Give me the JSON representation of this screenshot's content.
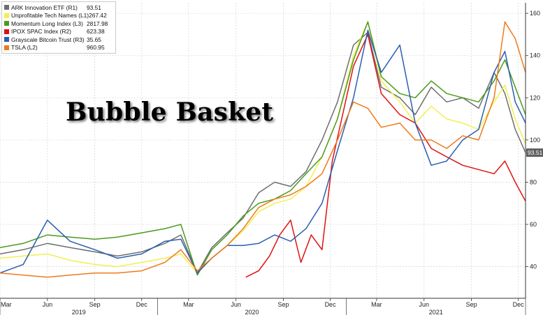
{
  "headline": "Bubble Basket",
  "chart_data": {
    "type": "line",
    "title": "Bubble Basket",
    "x_months": [
      "Mar",
      "Jun",
      "Sep",
      "Dec",
      "Mar",
      "Jun",
      "Sep",
      "Dec",
      "Mar",
      "Jun",
      "Sep",
      "Dec"
    ],
    "x_years": [
      "2019",
      "2020",
      "2021"
    ],
    "ylim": [
      25,
      165
    ],
    "y_ticks": [
      40,
      60,
      80,
      100,
      120,
      140,
      160
    ],
    "grid": true,
    "legend_placement": "top-left",
    "last_value_label": "93.51",
    "x_range": [
      "2019-03-01",
      "2021-12-15"
    ],
    "series": [
      {
        "name": "ARK Innovation ETF (R1)",
        "value_label": "93.51",
        "color": "#6e6e6e",
        "x": [
          "2019-03-01",
          "2019-04-15",
          "2019-06-01",
          "2019-07-15",
          "2019-09-01",
          "2019-10-15",
          "2019-12-01",
          "2020-01-15",
          "2020-02-15",
          "2020-03-18",
          "2020-04-15",
          "2020-05-15",
          "2020-06-15",
          "2020-07-15",
          "2020-08-15",
          "2020-09-15",
          "2020-10-15",
          "2020-11-15",
          "2020-12-15",
          "2021-01-15",
          "2021-02-12",
          "2021-03-10",
          "2021-04-15",
          "2021-05-15",
          "2021-06-15",
          "2021-07-15",
          "2021-08-15",
          "2021-09-15",
          "2021-10-15",
          "2021-11-05",
          "2021-11-25",
          "2021-12-15"
        ],
        "y": [
          46,
          48,
          51,
          49,
          47,
          45,
          47,
          51,
          55,
          37,
          49,
          56,
          63,
          75,
          80,
          78,
          85,
          100,
          118,
          145,
          151,
          125,
          120,
          112,
          125,
          118,
          120,
          115,
          132,
          122,
          105,
          94
        ]
      },
      {
        "name": "Unprofitable Tech Names (L1)",
        "value_label": "267.42",
        "color": "#f0f050",
        "x": [
          "2019-03-01",
          "2019-04-15",
          "2019-06-01",
          "2019-07-15",
          "2019-09-01",
          "2019-10-15",
          "2019-12-01",
          "2020-01-15",
          "2020-02-15",
          "2020-03-18",
          "2020-04-15",
          "2020-05-15",
          "2020-06-15",
          "2020-07-15",
          "2020-08-15",
          "2020-09-15",
          "2020-10-15",
          "2020-11-15",
          "2020-12-15",
          "2021-01-15",
          "2021-02-12",
          "2021-03-10",
          "2021-04-15",
          "2021-05-15",
          "2021-06-15",
          "2021-07-15",
          "2021-08-15",
          "2021-09-15",
          "2021-10-15",
          "2021-11-05",
          "2021-11-25",
          "2021-12-15"
        ],
        "y": [
          44,
          45,
          46,
          43,
          41,
          40,
          42,
          44,
          46,
          37,
          44,
          50,
          57,
          66,
          70,
          72,
          78,
          92,
          110,
          140,
          156,
          128,
          118,
          108,
          116,
          110,
          108,
          105,
          118,
          126,
          110,
          98
        ]
      },
      {
        "name": "Momentum Long Index (L3)",
        "value_label": "2817.98",
        "color": "#4a9a1e",
        "x": [
          "2019-03-01",
          "2019-04-15",
          "2019-06-01",
          "2019-07-15",
          "2019-09-01",
          "2019-10-15",
          "2019-12-01",
          "2020-01-15",
          "2020-02-15",
          "2020-03-18",
          "2020-04-15",
          "2020-05-15",
          "2020-06-15",
          "2020-07-15",
          "2020-08-15",
          "2020-09-15",
          "2020-10-15",
          "2020-11-15",
          "2020-12-15",
          "2021-01-15",
          "2021-02-12",
          "2021-03-10",
          "2021-04-15",
          "2021-05-15",
          "2021-06-15",
          "2021-07-15",
          "2021-08-15",
          "2021-09-15",
          "2021-10-15",
          "2021-11-05",
          "2021-11-25",
          "2021-12-15"
        ],
        "y": [
          49,
          51,
          55,
          54,
          53,
          54,
          56,
          58,
          60,
          36,
          48,
          55,
          64,
          70,
          72,
          76,
          84,
          92,
          110,
          138,
          156,
          130,
          122,
          120,
          128,
          122,
          120,
          118,
          128,
          138,
          125,
          112
        ]
      },
      {
        "name": "IPOX SPAC Index (R2)",
        "value_label": "623.38",
        "color": "#e01010",
        "x": [
          "2020-06-20",
          "2020-07-15",
          "2020-08-05",
          "2020-08-25",
          "2020-09-15",
          "2020-10-05",
          "2020-10-25",
          "2020-11-15",
          "2020-12-05",
          "2020-12-25",
          "2021-01-15",
          "2021-02-12",
          "2021-03-10",
          "2021-04-15",
          "2021-05-15",
          "2021-06-15",
          "2021-07-15",
          "2021-08-15",
          "2021-09-15",
          "2021-10-15",
          "2021-11-05",
          "2021-11-25",
          "2021-12-15"
        ],
        "y": [
          35,
          38,
          45,
          55,
          62,
          42,
          55,
          48,
          90,
          112,
          135,
          150,
          122,
          112,
          108,
          96,
          92,
          88,
          86,
          84,
          90,
          80,
          71
        ]
      },
      {
        "name": "Grayscale Bitcoin Trust (R3)",
        "value_label": "35.65",
        "color": "#2a5fb0",
        "x": [
          "2019-03-01",
          "2019-04-15",
          "2019-06-01",
          "2019-07-15",
          "2019-09-01",
          "2019-10-15",
          "2019-12-01",
          "2020-01-15",
          "2020-02-15",
          "2020-03-18",
          "2020-04-15",
          "2020-05-15",
          "2020-06-15",
          "2020-07-15",
          "2020-08-15",
          "2020-09-15",
          "2020-10-15",
          "2020-11-15",
          "2020-12-15",
          "2021-01-15",
          "2021-02-12",
          "2021-03-10",
          "2021-04-15",
          "2021-05-15",
          "2021-06-15",
          "2021-07-15",
          "2021-08-15",
          "2021-09-15",
          "2021-10-15",
          "2021-11-05",
          "2021-11-25",
          "2021-12-15"
        ],
        "y": [
          37,
          41,
          62,
          52,
          48,
          44,
          46,
          52,
          53,
          37,
          44,
          50,
          50,
          51,
          55,
          52,
          58,
          70,
          95,
          120,
          152,
          132,
          145,
          108,
          88,
          90,
          100,
          105,
          132,
          142,
          118,
          108
        ]
      },
      {
        "name": "TSLA (L2)",
        "value_label": "960.95",
        "color": "#f07a1a",
        "x": [
          "2019-03-01",
          "2019-04-15",
          "2019-06-01",
          "2019-07-15",
          "2019-09-01",
          "2019-10-15",
          "2019-12-01",
          "2020-01-15",
          "2020-02-15",
          "2020-03-18",
          "2020-04-15",
          "2020-05-15",
          "2020-06-15",
          "2020-07-15",
          "2020-08-15",
          "2020-09-15",
          "2020-10-15",
          "2020-11-15",
          "2020-12-15",
          "2021-01-15",
          "2021-02-12",
          "2021-03-10",
          "2021-04-15",
          "2021-05-15",
          "2021-06-15",
          "2021-07-15",
          "2021-08-15",
          "2021-09-15",
          "2021-10-15",
          "2021-11-05",
          "2021-11-25",
          "2021-12-15"
        ],
        "y": [
          37,
          36,
          35,
          36,
          37,
          37,
          38,
          42,
          48,
          38,
          44,
          50,
          58,
          68,
          72,
          74,
          78,
          84,
          100,
          118,
          115,
          106,
          108,
          100,
          100,
          96,
          102,
          100,
          120,
          156,
          148,
          132
        ]
      }
    ]
  }
}
